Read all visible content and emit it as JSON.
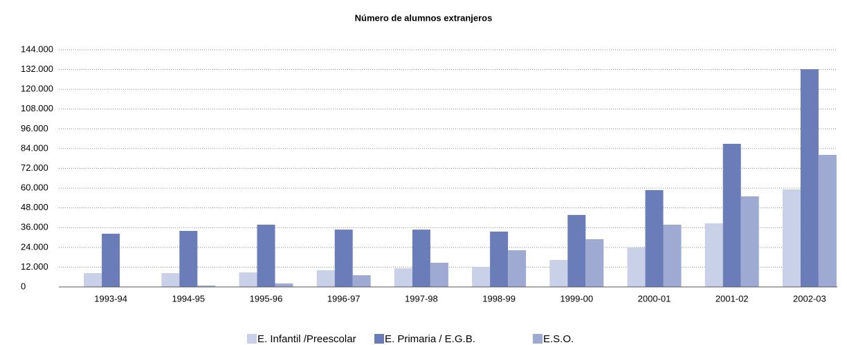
{
  "chart_data": {
    "type": "bar",
    "title": "Número de alumnos extranjeros",
    "categories": [
      "1993-94",
      "1994-95",
      "1995-96",
      "1996-97",
      "1997-98",
      "1998-99",
      "1999-00",
      "2000-01",
      "2001-02",
      "2002-03"
    ],
    "series": [
      {
        "name": "E. Infantil /Preescolar",
        "color": "#c9d1e8",
        "values": [
          8400,
          8400,
          8800,
          10100,
          11300,
          12200,
          16400,
          23900,
          38600,
          59200
        ]
      },
      {
        "name": "E. Primaria / E.G.B.",
        "color": "#6b7db9",
        "values": [
          32300,
          34000,
          37800,
          34800,
          34800,
          33600,
          43700,
          58800,
          86900,
          132200
        ]
      },
      {
        "name": "E.S.O.",
        "color": "#9eaad2",
        "values": [
          0,
          800,
          2100,
          7100,
          14700,
          22300,
          29000,
          37800,
          55000,
          80200
        ]
      }
    ],
    "ylim": [
      0,
      144000
    ],
    "yticks": [
      0,
      {
        "value": 12000,
        "label": "12.000"
      },
      {
        "value": 24000,
        "label": "24.000"
      },
      {
        "value": 36000,
        "label": "36.000"
      },
      {
        "value": 48000,
        "label": "48.000"
      },
      {
        "value": 60000,
        "label": "60.000"
      },
      {
        "value": 72000,
        "label": "72.000"
      },
      {
        "value": 84000,
        "label": "84.000"
      },
      {
        "value": 96000,
        "label": "96.000"
      },
      {
        "value": 108000,
        "label": "108.000"
      },
      {
        "value": 120000,
        "label": "120.000"
      },
      {
        "value": 132000,
        "label": "132.000"
      },
      {
        "value": 144000,
        "label": "144.000"
      }
    ],
    "grid": true
  }
}
